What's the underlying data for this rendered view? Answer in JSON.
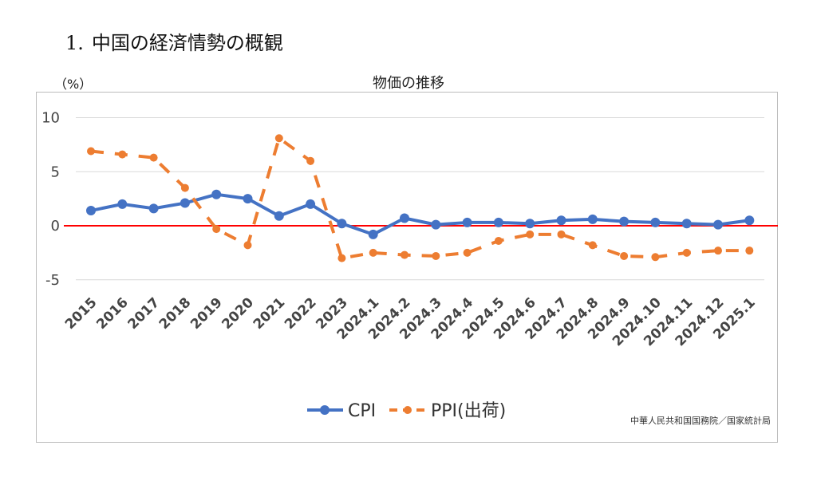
{
  "heading": {
    "number": "1.",
    "text": "中国の経済情勢の概観"
  },
  "unit_label": "（%）",
  "source": "中華人民共和国国務院／国家統計局",
  "colors": {
    "cpi": "#4472C4",
    "ppi": "#ED7D31",
    "zero_line": "#FF0000",
    "grid": "#D9D9D9"
  },
  "chart_data": {
    "type": "line",
    "title": "物価の推移",
    "xlabel": "",
    "ylabel": "（%）",
    "ylim": [
      -6,
      10
    ],
    "yticks": [
      10,
      5,
      0,
      -5
    ],
    "ytick_labels": [
      "10",
      "5",
      "0",
      "-5"
    ],
    "grid": true,
    "legend_position": "bottom",
    "categories": [
      "2015",
      "2016",
      "2017",
      "2018",
      "2019",
      "2020",
      "2021",
      "2022",
      "2023",
      "2024.1",
      "2024.2",
      "2024.3",
      "2024.4",
      "2024.5",
      "2024.6",
      "2024.7",
      "2024.8",
      "2024.9",
      "2024.10",
      "2024.11",
      "2024.12",
      "2025.1"
    ],
    "series": [
      {
        "name": "CPI",
        "style": "solid",
        "values": [
          1.4,
          2.0,
          1.6,
          2.1,
          2.9,
          2.5,
          0.9,
          2.0,
          0.2,
          -0.8,
          0.7,
          0.1,
          0.3,
          0.3,
          0.2,
          0.5,
          0.6,
          0.4,
          0.3,
          0.2,
          0.1,
          0.5
        ]
      },
      {
        "name": "PPI(出荷)",
        "style": "dashed",
        "values": [
          6.9,
          6.6,
          6.3,
          3.5,
          -0.3,
          -1.8,
          8.1,
          6.0,
          -3.0,
          -2.5,
          -2.7,
          -2.8,
          -2.5,
          -1.4,
          -0.8,
          -0.8,
          -1.8,
          -2.8,
          -2.9,
          -2.5,
          -2.3,
          -2.3
        ]
      }
    ]
  }
}
